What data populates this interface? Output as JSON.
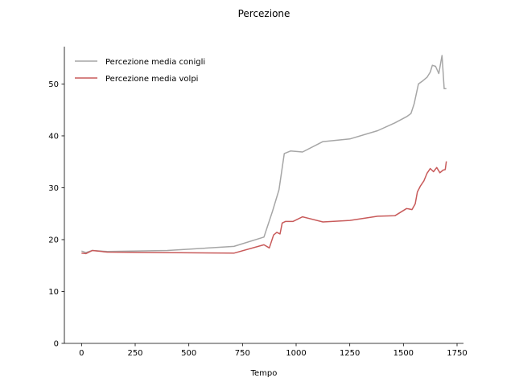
{
  "chart_data": {
    "type": "line",
    "title": "Percezione",
    "xlabel": "Tempo",
    "ylabel": "",
    "xlim": [
      -80,
      1780
    ],
    "ylim": [
      0,
      57.2
    ],
    "xticks": [
      0,
      250,
      500,
      750,
      1000,
      1250,
      1500,
      1750
    ],
    "yticks": [
      0,
      10,
      20,
      30,
      40,
      50
    ],
    "grid": false,
    "legend_position": "top-left",
    "series": [
      {
        "name": "Percezione media conigli",
        "color": "#a6a6a6",
        "points": [
          [
            0,
            17.8
          ],
          [
            20,
            17.5
          ],
          [
            50,
            17.9
          ],
          [
            120,
            17.7
          ],
          [
            400,
            17.9
          ],
          [
            710,
            18.7
          ],
          [
            850,
            20.5
          ],
          [
            890,
            25.5
          ],
          [
            920,
            29.6
          ],
          [
            945,
            36.6
          ],
          [
            975,
            37.1
          ],
          [
            1030,
            36.9
          ],
          [
            1125,
            38.9
          ],
          [
            1250,
            39.4
          ],
          [
            1380,
            41.0
          ],
          [
            1460,
            42.5
          ],
          [
            1515,
            43.7
          ],
          [
            1535,
            44.3
          ],
          [
            1550,
            46.2
          ],
          [
            1570,
            50.0
          ],
          [
            1590,
            50.6
          ],
          [
            1610,
            51.3
          ],
          [
            1625,
            52.3
          ],
          [
            1635,
            53.6
          ],
          [
            1650,
            53.4
          ],
          [
            1665,
            52.0
          ],
          [
            1680,
            55.5
          ],
          [
            1690,
            49.1
          ],
          [
            1700,
            49.1
          ]
        ]
      },
      {
        "name": "Percezione media volpi",
        "color": "#c85a5a",
        "points": [
          [
            0,
            17.4
          ],
          [
            20,
            17.3
          ],
          [
            50,
            17.9
          ],
          [
            120,
            17.6
          ],
          [
            400,
            17.5
          ],
          [
            710,
            17.4
          ],
          [
            850,
            19.0
          ],
          [
            875,
            18.4
          ],
          [
            895,
            20.9
          ],
          [
            910,
            21.4
          ],
          [
            925,
            21.1
          ],
          [
            935,
            23.2
          ],
          [
            950,
            23.5
          ],
          [
            985,
            23.5
          ],
          [
            1030,
            24.4
          ],
          [
            1125,
            23.4
          ],
          [
            1250,
            23.7
          ],
          [
            1380,
            24.5
          ],
          [
            1460,
            24.6
          ],
          [
            1515,
            26.0
          ],
          [
            1540,
            25.8
          ],
          [
            1555,
            26.9
          ],
          [
            1565,
            29.2
          ],
          [
            1580,
            30.4
          ],
          [
            1595,
            31.3
          ],
          [
            1610,
            32.8
          ],
          [
            1625,
            33.7
          ],
          [
            1640,
            33.1
          ],
          [
            1655,
            33.9
          ],
          [
            1670,
            32.9
          ],
          [
            1685,
            33.4
          ],
          [
            1695,
            33.5
          ],
          [
            1700,
            35.1
          ]
        ]
      }
    ]
  }
}
